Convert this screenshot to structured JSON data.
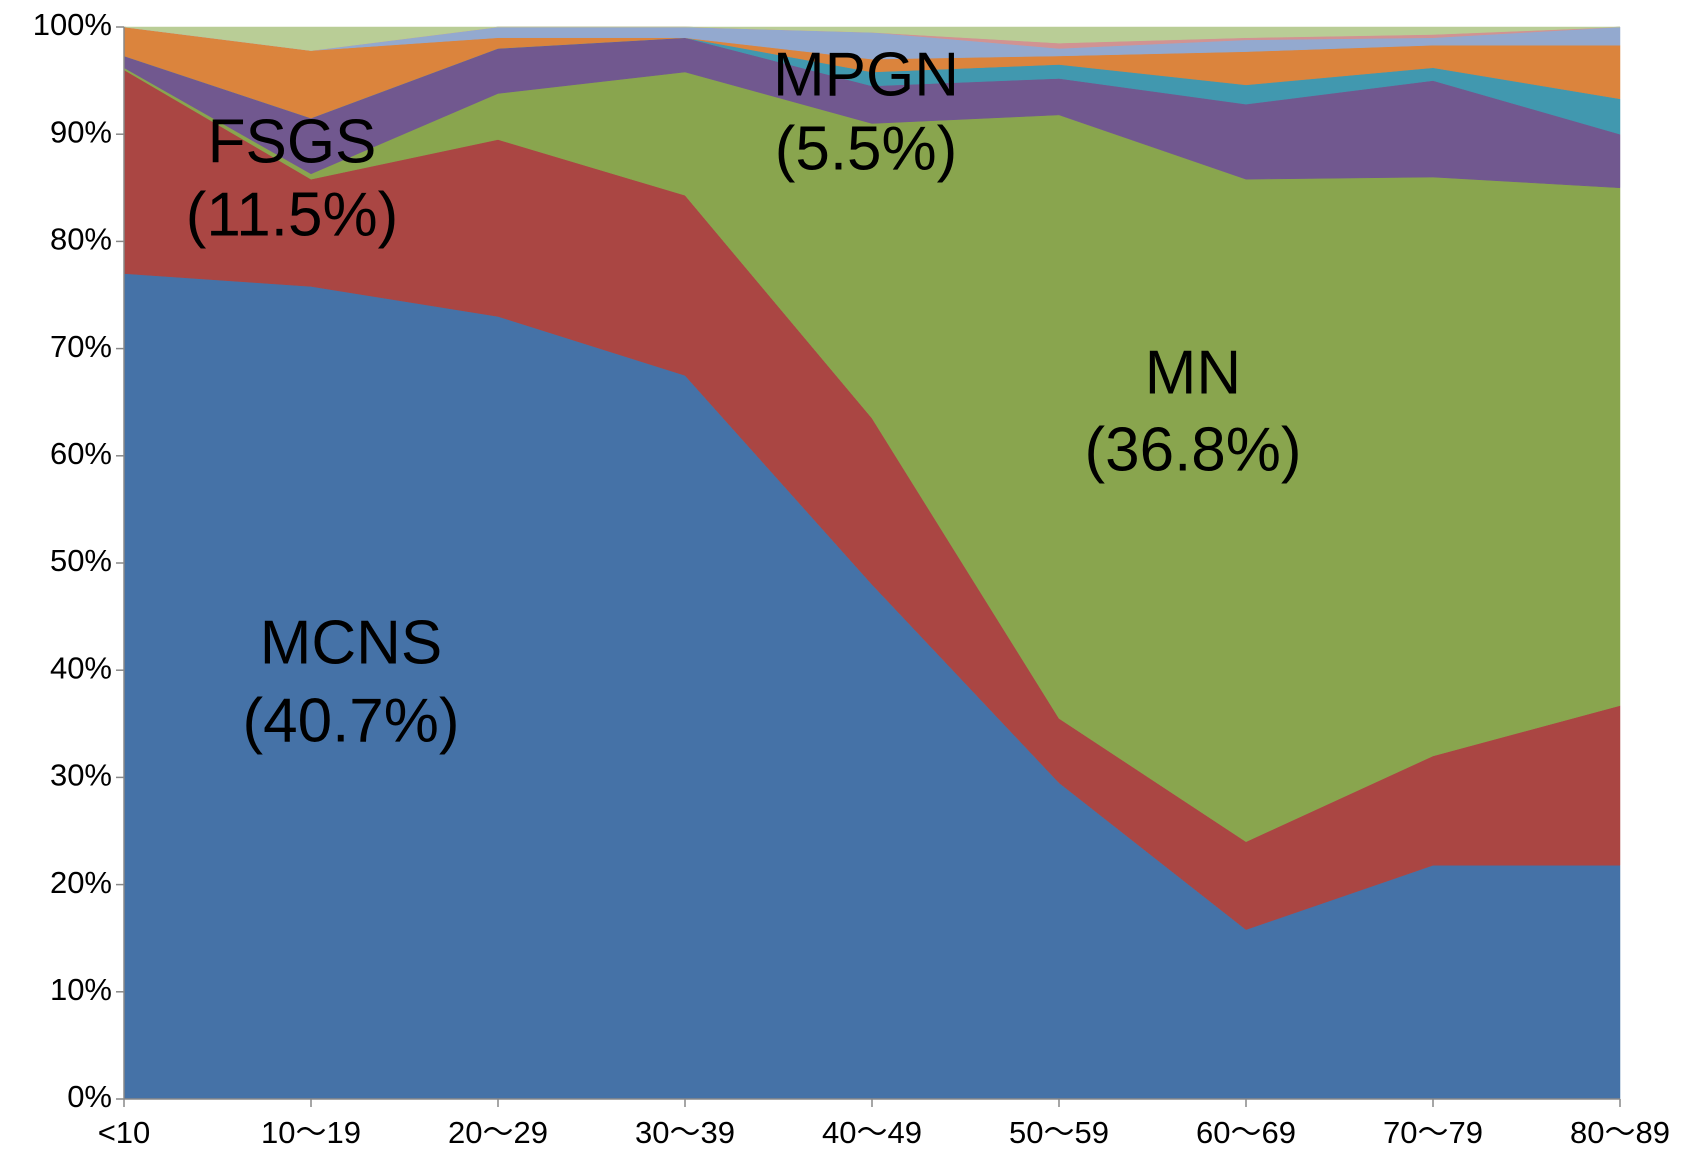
{
  "chart_data": {
    "type": "stacked_area",
    "categories": [
      "<10",
      "10～19",
      "20～29",
      "30～39",
      "40～49",
      "50～59",
      "60～69",
      "70～79",
      "80～89"
    ],
    "series": [
      {
        "color": "#4572a7",
        "values": [
          77,
          75.8,
          73,
          67.5,
          48,
          29.5,
          15.8,
          21.8,
          21.8
        ]
      },
      {
        "color": "#aa4643",
        "values": [
          19,
          10,
          16.5,
          16.8,
          15.5,
          6,
          8.2,
          10.2,
          14.9
        ]
      },
      {
        "color": "#89a54e",
        "values": [
          0.2,
          0.5,
          4.3,
          11.5,
          27.5,
          56.3,
          61.8,
          54,
          48.3
        ]
      },
      {
        "color": "#71588f",
        "values": [
          1.1,
          5.2,
          4.2,
          3.2,
          3.5,
          3.4,
          7,
          9,
          5
        ]
      },
      {
        "color": "#4198af",
        "values": [
          0,
          0,
          0,
          0,
          1.3,
          1.3,
          1.8,
          1.2,
          3.3
        ]
      },
      {
        "color": "#db843d",
        "values": [
          2.7,
          6.3,
          1,
          0,
          1.2,
          0.8,
          3.1,
          2.1,
          5
        ]
      },
      {
        "color": "#93a9cf",
        "values": [
          0,
          0,
          1,
          1,
          2.5,
          0.7,
          1.1,
          0.7,
          1.7
        ]
      },
      {
        "color": "#d19392",
        "values": [
          0,
          0,
          0,
          0,
          0,
          0.5,
          0.2,
          0.3,
          0
        ]
      },
      {
        "color": "#b9cd96",
        "values": [
          0,
          2.2,
          0,
          0,
          0.5,
          1.5,
          1,
          0.7,
          0
        ]
      }
    ],
    "ylim": [
      0,
      100
    ],
    "yticks": [
      {
        "value": 0,
        "label": "0%"
      },
      {
        "value": 10,
        "label": "10%"
      },
      {
        "value": 20,
        "label": "20%"
      },
      {
        "value": 30,
        "label": "30%"
      },
      {
        "value": 40,
        "label": "40%"
      },
      {
        "value": 50,
        "label": "50%"
      },
      {
        "value": 60,
        "label": "60%"
      },
      {
        "value": 70,
        "label": "70%"
      },
      {
        "value": 80,
        "label": "80%"
      },
      {
        "value": 90,
        "label": "90%"
      },
      {
        "value": 100,
        "label": "100%"
      }
    ],
    "grid": false,
    "annotations": [
      {
        "lines": [
          "MCNS",
          "(40.7%)"
        ]
      },
      {
        "lines": [
          "FSGS",
          "(11.5%)"
        ]
      },
      {
        "lines": [
          "MPGN",
          "(5.5%)"
        ]
      },
      {
        "lines": [
          "MN",
          "(36.8%)"
        ]
      }
    ]
  }
}
